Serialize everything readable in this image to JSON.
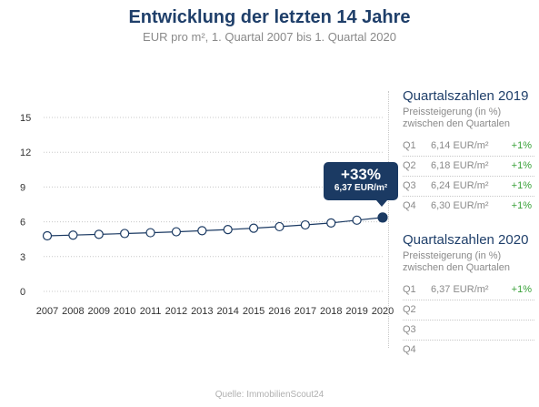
{
  "chart_data": {
    "type": "line",
    "title": "Entwicklung der letzten 14 Jahre",
    "subtitle": "EUR pro m², 1. Quartal 2007 bis 1. Quartal 2020",
    "x": [
      "2007",
      "2008",
      "2009",
      "2010",
      "2011",
      "2012",
      "2013",
      "2014",
      "2015",
      "2016",
      "2017",
      "2018",
      "2019",
      "2020"
    ],
    "series": [
      {
        "values": [
          4.79,
          4.85,
          4.92,
          4.99,
          5.06,
          5.14,
          5.23,
          5.33,
          5.45,
          5.58,
          5.73,
          5.9,
          6.14,
          6.37
        ]
      }
    ],
    "yticks": [
      0,
      3,
      6,
      9,
      12,
      15
    ],
    "ylim": [
      0,
      15
    ],
    "grid": true,
    "color": "#1b3a63",
    "annotation": {
      "change": "+33%",
      "value": "6,37 EUR/m²"
    }
  },
  "panel2019": {
    "title": "Quartalszahlen 2019",
    "desc_line1": "Preissteigerung (in %)",
    "desc_line2": "zwischen den Quartalen",
    "rows": [
      {
        "q": "Q1",
        "value": "6,14 EUR/m²",
        "change": "+1%"
      },
      {
        "q": "Q2",
        "value": "6,18 EUR/m²",
        "change": "+1%"
      },
      {
        "q": "Q3",
        "value": "6,24 EUR/m²",
        "change": "+1%"
      },
      {
        "q": "Q4",
        "value": "6,30 EUR/m²",
        "change": "+1%"
      }
    ]
  },
  "panel2020": {
    "title": "Quartalszahlen 2020",
    "desc_line1": "Preissteigerung (in %)",
    "desc_line2": "zwischen den Quartalen",
    "rows": [
      {
        "q": "Q1",
        "value": "6,37 EUR/m²",
        "change": "+1%"
      },
      {
        "q": "Q2",
        "value": "",
        "change": ""
      },
      {
        "q": "Q3",
        "value": "",
        "change": ""
      },
      {
        "q": "Q4",
        "value": "",
        "change": ""
      }
    ]
  },
  "source": "Quelle: ImmobilienScout24"
}
